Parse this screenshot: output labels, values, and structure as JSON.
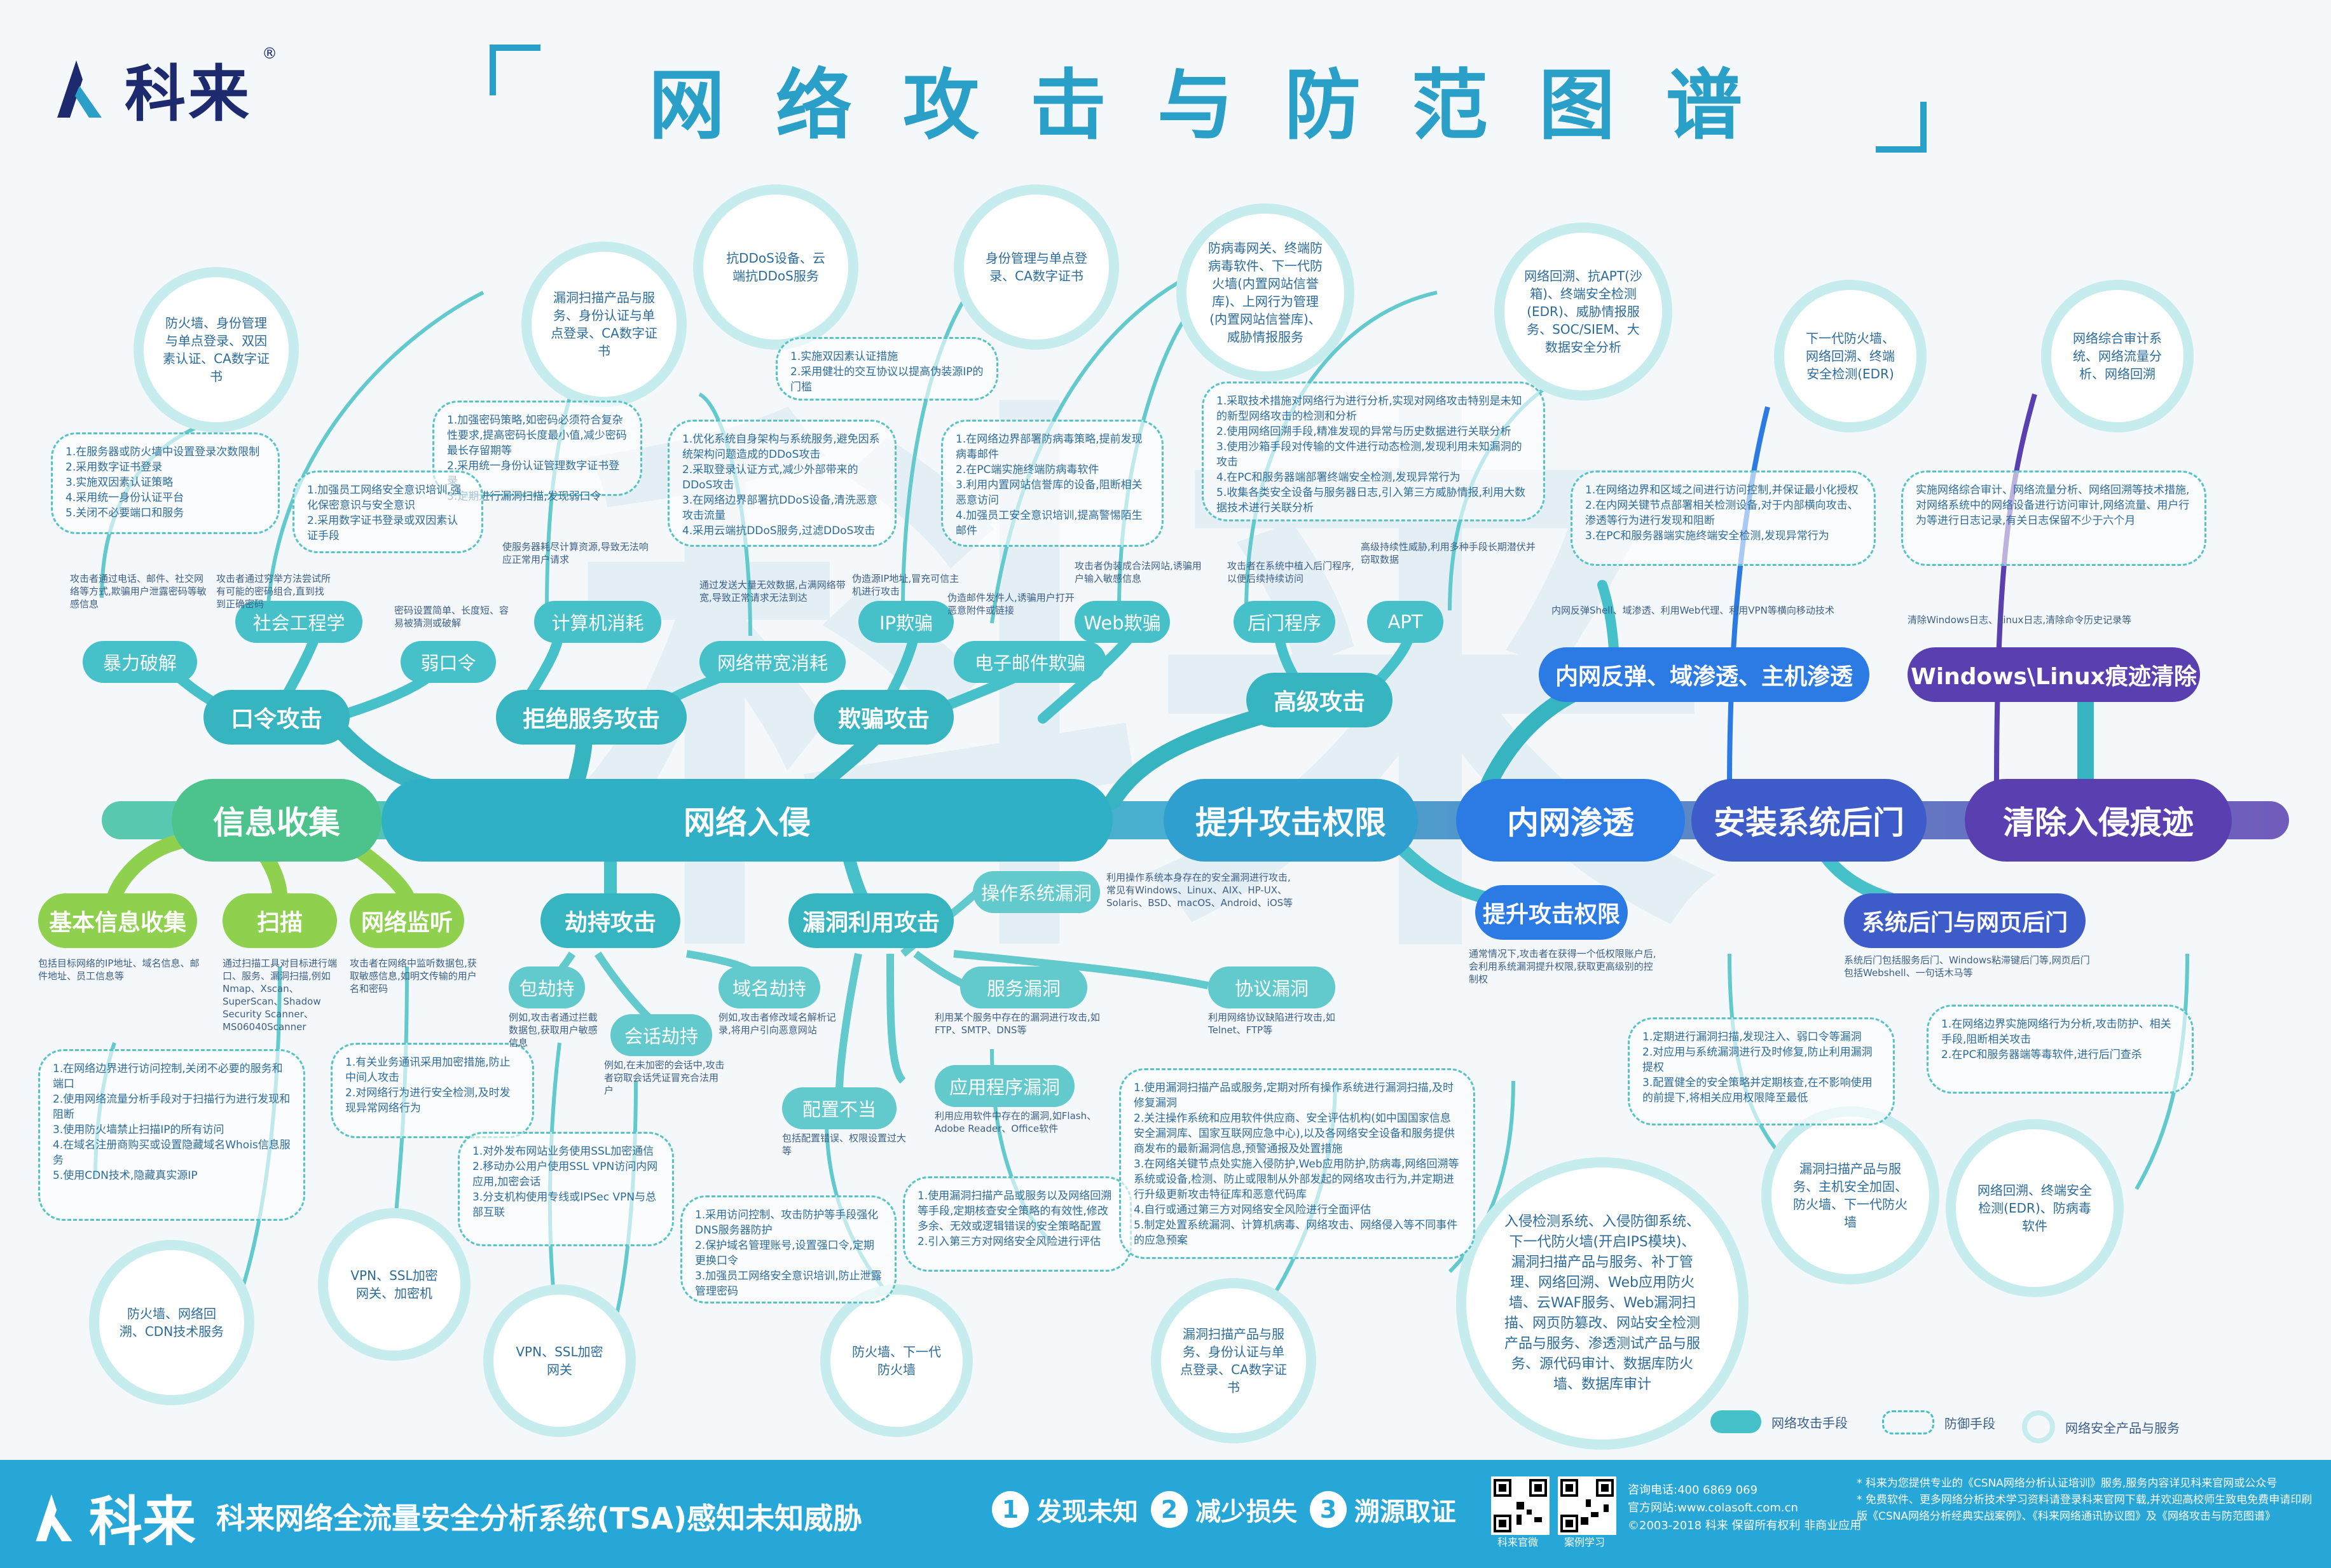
{
  "brand": {
    "name": "科来",
    "reg": "®"
  },
  "title": "网络攻击与防范图谱",
  "colors": {
    "teal": "#2aa0c9",
    "green": "#8fd14f",
    "purple": "#5a3fb0",
    "blue": "#2c7be5",
    "light": "#c7ecee"
  },
  "main_flow": {
    "info": "信息收集",
    "intrusion": "网络入侵",
    "escalate": "提升攻击权限",
    "lateral": "内网渗透",
    "backdoor": "安装系统后门",
    "cleanup": "清除入侵痕迹"
  },
  "mid": {
    "password": "口令攻击",
    "dos": "拒绝服务攻击",
    "spoof": "欺骗攻击",
    "advanced": "高级攻击",
    "lateral_top": "内网反弹、域渗透、主机渗透",
    "clean_top": "Windows\\Linux痕迹清除",
    "basic": "基本信息收集",
    "scan": "扫描",
    "sniff": "网络监听",
    "hijack": "劫持攻击",
    "exploit": "漏洞利用攻击",
    "escalate2": "提升攻击权限",
    "backdoor2": "系统后门与网页后门"
  },
  "leaf": {
    "social": "社会工程学",
    "brute": "暴力破解",
    "weakpwd": "弱口令",
    "compute": "计算机消耗",
    "bandwidth": "网络带宽消耗",
    "ip_spoof": "IP欺骗",
    "email": "电子邮件欺骗",
    "web": "Web欺骗",
    "backdoor_prog": "后门程序",
    "apt": "APT",
    "os_vuln": "操作系统漏洞",
    "svc_vuln": "服务漏洞",
    "proto_vuln": "协议漏洞",
    "app_vuln": "应用程序漏洞",
    "misconfig": "配置不当",
    "packet": "包劫持",
    "session": "会话劫持",
    "domain": "域名劫持"
  },
  "products": {
    "p1": "防火墙、身份管理与单点登录、双因素认证、CA数字证书",
    "p2": "漏洞扫描产品与服务、身份认证与单点登录、CA数字证书",
    "p3": "抗DDoS设备、云端抗DDoS服务",
    "p4": "身份管理与单点登录、CA数字证书",
    "p5": "防病毒网关、终端防病毒软件、下一代防火墙(内置网站信誉库)、上网行为管理(内置网站信誉库)、威胁情报服务",
    "p6": "网络回溯、抗APT(沙箱)、终端安全检测(EDR)、威胁情报服务、SOC/SIEM、大数据安全分析",
    "p7": "下一代防火墙、网络回溯、终端安全检测(EDR)",
    "p8": "网络综合审计系统、网络流量分析、网络回溯",
    "p9": "防火墙、网络回溯、CDN技术服务",
    "p10": "VPN、SSL加密网关、加密机",
    "p11": "VPN、SSL加密网关",
    "p12": "防火墙、下一代防火墙",
    "p13": "漏洞扫描产品与服务、身份认证与单点登录、CA数字证书",
    "p14": "入侵检测系统、入侵防御系统、下一代防火墙(开启IPS模块)、漏洞扫描产品与服务、补丁管理、网络回溯、Web应用防火墙、云WAF服务、Web漏洞扫描、网页防篡改、网站安全检测产品与服务、渗透测试产品与服务、源代码审计、数据库防火墙、数据库审计",
    "p15": "漏洞扫描产品与服务、主机安全加固、防火墙、下一代防火墙",
    "p16": "网络回溯、终端安全检测(EDR)、防病毒软件"
  },
  "defenses": {
    "d1": "1.在服务器或防火墙中设置登录次数限制\n2.采用数字证书登录\n3.实施双因素认证策略\n4.采用统一身份认证平台\n5.关闭不必要端口和服务",
    "d2": "1.加强密码策略,如密码必须符合复杂性要求,提高密码长度最小值,减少密码最长存留期等\n2.采用统一身份认证管理数字证书登录\n3.定期进行漏洞扫描,发现弱口令",
    "d3": "1.加强员工网络安全意识培训,强化保密意识与安全意识\n2.采用数字证书登录或双因素认证手段",
    "d4": "1.优化系统自身架构与系统服务,避免因系统架构问题造成的DDoS攻击\n2.采取登录认证方式,减少外部带来的DDoS攻击\n3.在网络边界部署抗DDoS设备,清洗恶意攻击流量\n4.采用云端抗DDoS服务,过滤DDoS攻击",
    "d5": "1.实施双因素认证措施\n2.采用健壮的交互协议以提高伪装源IP的门槛",
    "d6": "1.在网络边界部署防病毒策略,提前发现病毒邮件\n2.在PC端实施终端防病毒软件\n3.利用内置网站信誉库的设备,阻断相关恶意访问\n4.加强员工安全意识培训,提高警惕陌生邮件",
    "d7": "1.采取技术措施对网络行为进行分析,实现对网络攻击特别是未知的新型网络攻击的检测和分析\n2.使用网络回溯手段,精准发现的异常与历史数据进行关联分析\n3.使用沙箱手段对传输的文件进行动态检测,发现利用未知漏洞的攻击\n4.在PC和服务器端部署终端安全检测,发现异常行为\n5.收集各类安全设备与服务器日志,引入第三方威胁情报,利用大数据技术进行关联分析",
    "d8": "1.在网络边界和区域之间进行访问控制,并保证最小化授权\n2.在内网关键节点部署相关检测设备,对于内部横向攻击、渗透等行为进行发现和阻断\n3.在PC和服务器端实施终端安全检测,发现异常行为",
    "d9": "实施网络综合审计、网络流量分析、网络回溯等技术措施,对网络系统中的网络设备进行访问审计,网络流量、用户行为等进行日志记录,有关日志保留不少于六个月",
    "d10": "1.在网络边界实施网络行为分析,攻击防护、相关手段,阻断相关攻击\n2.在PC和服务器端等毒软件,进行后门查杀",
    "d11": "1.在网络边界进行访问控制,关闭不必要的服务和端口\n2.使用网络流量分析手段对于扫描行为进行发现和阻断\n3.使用防火墙禁止扫描IP的所有访问\n4.在域名注册商购买或设置隐藏域名Whois信息服务\n5.使用CDN技术,隐藏真实源IP",
    "d12": "1.有关业务通讯采用加密措施,防止中间人攻击\n2.对网络行为进行安全检测,及时发现异常网络行为",
    "d13": "1.对外发布网站业务使用SSL加密通信\n2.移动办公用户使用SSL VPN访问内网应用,加密会话\n3.分支机构使用专线或IPSec VPN与总部互联",
    "d14": "1.采用访问控制、攻击防护等手段强化DNS服务器防护\n2.保护域名管理账号,设置强口令,定期更换口令\n3.加强员工网络安全意识培训,防止泄露管理密码",
    "d15": "1.使用漏洞扫描产品或服务以及网络回溯等手段,定期核查安全策略的有效性,修改多余、无效或逻辑错误的安全策略配置\n2.引入第三方对网络安全风险进行评估",
    "d16": "1.使用漏洞扫描产品或服务,定期对所有操作系统进行漏洞扫描,及时修复漏洞\n2.关注操作系统和应用软件供应商、安全评估机构(如中国国家信息安全漏洞库、国家互联网应急中心),以及各网络安全设备和服务提供商发布的最新漏洞信息,预警通报及处置措施\n3.在网络关键节点处实施入侵防护,Web应用防护,防病毒,网络回溯等系统或设备,检测、防止或限制从外部发起的网络攻击行为,并定期进行升级更新攻击特征库和恶意代码库\n4.自行或通过第三方对网络安全风险进行全面评估\n5.制定处置系统漏洞、计算机病毒、网络攻击、网络侵入等不同事件的应急预案",
    "d17": "1.定期进行漏洞扫描,发现注入、弱口令等漏洞\n2.对应用与系统漏洞进行及时修复,防止利用漏洞提权\n3.配置健全的安全策略并定期核查,在不影响使用的前提下,将相关应用权限降至最低"
  },
  "notes": {
    "n_social": "攻击者通过电话、邮件、社交网络等方式,欺骗用户泄露密码等敏感信息",
    "n_brute": "攻击者通过穷举方法尝试所有可能的密码组合,直到找到正确密码",
    "n_weak": "密码设置简单、长度短、容易被猜测或破解",
    "n_compute": "使服务器耗尽计算资源,导致无法响应正常用户请求",
    "n_bandwidth": "通过发送大量无效数据,占满网络带宽,导致正常请求无法到达",
    "n_ip": "伪造源IP地址,冒充可信主机进行攻击",
    "n_email": "伪造邮件发件人,诱骗用户打开恶意附件或链接",
    "n_web": "攻击者伪装成合法网站,诱骗用户输入敏感信息",
    "n_backdoor": "攻击者在系统中植入后门程序,以便后续持续访问",
    "n_apt": "高级持续性威胁,利用多种手段长期潜伏并窃取数据",
    "n_basic": "包括目标网络的IP地址、域名信息、邮件地址、员工信息等",
    "n_scan": "通过扫描工具对目标进行端口、服务、漏洞扫描,例如Nmap、Xscan、SuperScan、Shadow Security Scanner、MS06040Scanner",
    "n_sniff": "攻击者在网络中监听数据包,获取敏感信息,如明文传输的用户名和密码",
    "n_packet": "例如,攻击者通过拦截数据包,获取用户敏感信息",
    "n_session": "例如,在未加密的会话中,攻击者窃取会话凭证冒充合法用户",
    "n_domain": "例如,攻击者修改域名解析记录,将用户引向恶意网站",
    "n_os": "利用操作系统本身存在的安全漏洞进行攻击,常见有Windows、Linux、AIX、HP-UX、Solaris、BSD、macOS、Android、iOS等",
    "n_svc": "利用某个服务中存在的漏洞进行攻击,如FTP、SMTP、DNS等",
    "n_proto": "利用网络协议缺陷进行攻击,如Telnet、FTP等",
    "n_app": "利用应用软件中存在的漏洞,如Flash、Adobe Reader、Office软件",
    "n_misconfig": "包括配置错误、权限设置过大等",
    "n_escalate": "通常情况下,攻击者在获得一个低权限账户后,会利用系统漏洞提升权限,获取更高级别的控制权",
    "n_lateral": "内网反弹Shell、域渗透、利用Web代理、利用VPN等横向移动技术",
    "n_backdoor2": "系统后门包括服务后门、Windows粘滞键后门等,网页后门包括Webshell、一句话木马等",
    "n_clean": "清除Windows日志、Linux日志,清除命令历史记录等"
  },
  "legend": {
    "attack": "网络攻击手段",
    "defense": "防御手段",
    "product": "网络安全产品与服务"
  },
  "footer": {
    "brand": "科来",
    "slogan": "科来网络全流量安全分析系统(TSA)感知未知威胁",
    "steps": [
      {
        "n": "1",
        "label": "发现未知"
      },
      {
        "n": "2",
        "label": "减少损失"
      },
      {
        "n": "3",
        "label": "溯源取证"
      }
    ],
    "qr1": "科来官微",
    "qr2": "案例学习",
    "contact1": "咨询电话:400 6869 069",
    "contact2": "官方网站:www.colasoft.com.cn",
    "copyright": "©2003-2018 科来 保留所有权利 非商业应用",
    "note1": "* 科来为您提供专业的《CSNA网络分析认证培训》服务,服务内容详见科来官网或公众号",
    "note2": "* 免费软件、更多网络分析技术学习资料请登录科来官网下载,并欢迎高校师生致电免费申请印刷版《CSNA网络分析经典实战案例》、《科来网络通讯协议图》及《网络攻击与防范图谱》"
  }
}
